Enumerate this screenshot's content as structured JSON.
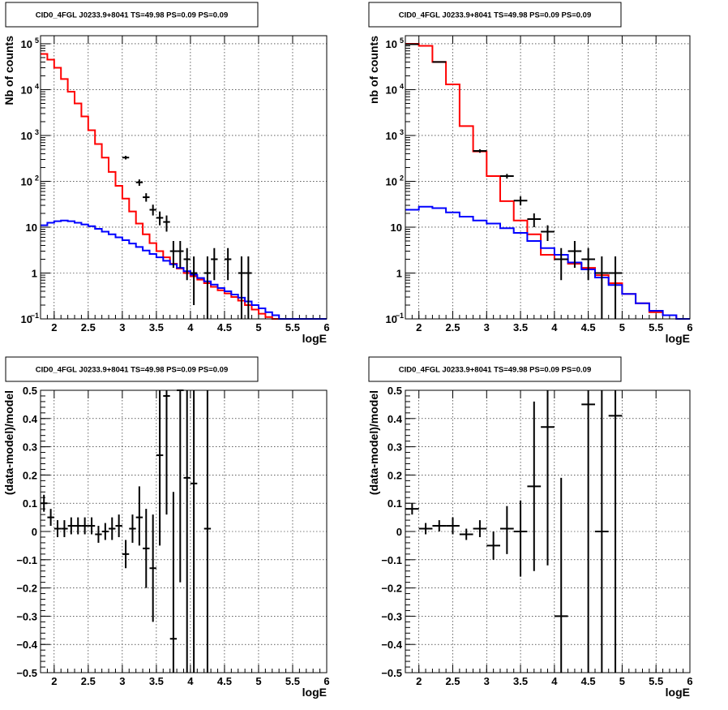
{
  "chart_data": [
    {
      "type": "line",
      "title": "CID0_4FGL J0233.9+8041 TS=49.98 PS=0.09 PS=0.09",
      "xlabel": "logE",
      "ylabel": "Nb of counts",
      "xlim": [
        1.8,
        6.0
      ],
      "ylim": [
        0.1,
        150000
      ],
      "yscale": "log",
      "grid": true,
      "x_ticks": [
        "2",
        "2.5",
        "3",
        "3.5",
        "4",
        "4.5",
        "5",
        "5.5",
        "6"
      ],
      "y_ticks": [
        {
          "v": 0.1,
          "base": "10",
          "exp": "−1"
        },
        {
          "v": 1,
          "base": "1",
          "exp": ""
        },
        {
          "v": 10,
          "base": "10",
          "exp": ""
        },
        {
          "v": 100,
          "base": "10",
          "exp": "2"
        },
        {
          "v": 1000,
          "base": "10",
          "exp": "3"
        },
        {
          "v": 10000,
          "base": "10",
          "exp": "4"
        },
        {
          "v": 100000,
          "base": "10",
          "exp": "5"
        }
      ],
      "series": [
        {
          "color": "#ff0000",
          "bin_edges": [
            1.8,
            1.9,
            2.0,
            2.1,
            2.2,
            2.3,
            2.4,
            2.5,
            2.6,
            2.7,
            2.8,
            2.9,
            3.0,
            3.1,
            3.2,
            3.3,
            3.4,
            3.5,
            3.6,
            3.7,
            3.8,
            3.9,
            4.0,
            4.1,
            4.2,
            4.3,
            4.4,
            4.5,
            4.6,
            4.7,
            4.8,
            4.9,
            5.0,
            5.1,
            5.2,
            5.3,
            5.4,
            5.5,
            5.6,
            5.7,
            5.8,
            5.9,
            6.0
          ],
          "values": [
            60000,
            45000,
            30000,
            17000,
            9000,
            5000,
            2600,
            1300,
            650,
            330,
            160,
            80,
            42,
            22,
            12,
            7,
            4.5,
            3,
            2.2,
            1.6,
            1.25,
            1.0,
            0.85,
            0.72,
            0.6,
            0.5,
            0.42,
            0.36,
            0.3,
            0.25,
            0.2,
            0.16,
            0.13,
            0.11,
            0.1,
            0.1,
            0.1,
            0.1,
            0.1,
            0.1,
            0.1,
            0.1
          ]
        },
        {
          "color": "#0000ff",
          "bin_edges": [
            1.8,
            1.9,
            2.0,
            2.1,
            2.2,
            2.3,
            2.4,
            2.5,
            2.6,
            2.7,
            2.8,
            2.9,
            3.0,
            3.1,
            3.2,
            3.3,
            3.4,
            3.5,
            3.6,
            3.7,
            3.8,
            3.9,
            4.0,
            4.1,
            4.2,
            4.3,
            4.4,
            4.5,
            4.6,
            4.7,
            4.8,
            4.9,
            5.0,
            5.1,
            5.2,
            5.3,
            5.4,
            5.5,
            5.6,
            5.7,
            5.8,
            5.9,
            6.0
          ],
          "values": [
            11,
            12.5,
            13.5,
            14,
            13.5,
            12.5,
            11.5,
            10.5,
            9.2,
            8,
            7,
            6,
            5.2,
            4.4,
            3.7,
            3.1,
            2.6,
            2.2,
            1.85,
            1.55,
            1.3,
            1.1,
            0.92,
            0.78,
            0.66,
            0.56,
            0.47,
            0.4,
            0.34,
            0.29,
            0.24,
            0.2,
            0.17,
            0.14,
            0.12,
            0.1,
            0.1,
            0.1,
            0.1,
            0.1,
            0.1,
            0.1
          ]
        }
      ],
      "points": [
        {
          "x": 3.05,
          "y": 330,
          "lo": 300,
          "hi": 360,
          "xerr": 0.05
        },
        {
          "x": 3.25,
          "y": 95,
          "lo": 80,
          "hi": 110,
          "xerr": 0.05
        },
        {
          "x": 3.35,
          "y": 45,
          "lo": 36,
          "hi": 55,
          "xerr": 0.05
        },
        {
          "x": 3.45,
          "y": 24,
          "lo": 18,
          "hi": 31,
          "xerr": 0.05
        },
        {
          "x": 3.55,
          "y": 16,
          "lo": 11,
          "hi": 22,
          "xerr": 0.05
        },
        {
          "x": 3.65,
          "y": 13,
          "lo": 8,
          "hi": 18,
          "xerr": 0.05
        },
        {
          "x": 3.75,
          "y": 3,
          "lo": 1.3,
          "hi": 5,
          "xerr": 0.05
        },
        {
          "x": 3.85,
          "y": 3,
          "lo": 1.3,
          "hi": 5,
          "xerr": 0.05
        },
        {
          "x": 3.95,
          "y": 2,
          "lo": 0.7,
          "hi": 3.5,
          "xerr": 0.05
        },
        {
          "x": 4.05,
          "y": 1,
          "lo": 0.2,
          "hi": 2.3,
          "xerr": 0.05
        },
        {
          "x": 4.25,
          "y": 1,
          "lo": 0.1,
          "hi": 2.3,
          "xerr": 0.05
        },
        {
          "x": 4.35,
          "y": 2,
          "lo": 0.7,
          "hi": 3.5,
          "xerr": 0.05
        },
        {
          "x": 4.55,
          "y": 2,
          "lo": 0.7,
          "hi": 3.5,
          "xerr": 0.05
        },
        {
          "x": 4.75,
          "y": 1,
          "lo": 0.1,
          "hi": 2.3,
          "xerr": 0.05
        },
        {
          "x": 4.85,
          "y": 1,
          "lo": 0.1,
          "hi": 2.3,
          "xerr": 0.05
        }
      ]
    },
    {
      "type": "line",
      "title": "CID0_4FGL J0233.9+8041 TS=49.98 PS=0.09 PS=0.09",
      "xlabel": "logE",
      "ylabel": "nb of counts",
      "xlim": [
        1.8,
        6.0
      ],
      "ylim": [
        0.1,
        150000
      ],
      "yscale": "log",
      "grid": true,
      "x_ticks": [
        "2",
        "2.5",
        "3",
        "3.5",
        "4",
        "4.5",
        "5",
        "5.5",
        "6"
      ],
      "y_ticks": [
        {
          "v": 0.1,
          "base": "10",
          "exp": "−1"
        },
        {
          "v": 1,
          "base": "1",
          "exp": ""
        },
        {
          "v": 10,
          "base": "10",
          "exp": ""
        },
        {
          "v": 100,
          "base": "10",
          "exp": "2"
        },
        {
          "v": 1000,
          "base": "10",
          "exp": "3"
        },
        {
          "v": 10000,
          "base": "10",
          "exp": "4"
        },
        {
          "v": 100000,
          "base": "10",
          "exp": "5"
        }
      ],
      "series": [
        {
          "color": "#ff0000",
          "bin_edges": [
            1.8,
            2.0,
            2.2,
            2.4,
            2.6,
            2.8,
            3.0,
            3.2,
            3.4,
            3.6,
            3.8,
            4.0,
            4.2,
            4.4,
            4.6,
            4.8,
            5.0,
            5.2,
            5.4,
            5.6,
            5.8,
            6.0
          ],
          "values": [
            100000,
            90000,
            40000,
            13000,
            1600,
            450,
            130,
            37,
            14,
            7,
            2.5,
            2,
            1.6,
            1.3,
            0.9,
            0.6,
            0.35,
            0.22,
            0.14,
            0.12,
            0.1
          ]
        },
        {
          "color": "#0000ff",
          "bin_edges": [
            1.8,
            2.0,
            2.2,
            2.4,
            2.6,
            2.8,
            3.0,
            3.2,
            3.4,
            3.6,
            3.8,
            4.0,
            4.2,
            4.4,
            4.6,
            4.8,
            5.0,
            5.2,
            5.4,
            5.6,
            5.8,
            6.0
          ],
          "values": [
            24,
            28,
            26,
            21,
            17,
            14,
            12,
            9.5,
            7.5,
            5,
            3.5,
            2.5,
            1.7,
            1.2,
            0.8,
            0.55,
            0.35,
            0.22,
            0.15,
            0.12,
            0.1
          ]
        }
      ],
      "points": [
        {
          "x": 1.9,
          "y": 98000,
          "lo": 95000,
          "hi": 102000,
          "xerr": 0.1
        },
        {
          "x": 2.3,
          "y": 40000,
          "lo": 39000,
          "hi": 41000,
          "xerr": 0.1
        },
        {
          "x": 2.9,
          "y": 460,
          "lo": 420,
          "hi": 500,
          "xerr": 0.1
        },
        {
          "x": 3.3,
          "y": 130,
          "lo": 115,
          "hi": 145,
          "xerr": 0.1
        },
        {
          "x": 3.5,
          "y": 38,
          "lo": 30,
          "hi": 47,
          "xerr": 0.1
        },
        {
          "x": 3.7,
          "y": 15,
          "lo": 10,
          "hi": 20,
          "xerr": 0.1
        },
        {
          "x": 3.9,
          "y": 8,
          "lo": 5,
          "hi": 11,
          "xerr": 0.1
        },
        {
          "x": 4.1,
          "y": 2,
          "lo": 0.7,
          "hi": 3.5,
          "xerr": 0.1
        },
        {
          "x": 4.3,
          "y": 3,
          "lo": 1.3,
          "hi": 5,
          "xerr": 0.1
        },
        {
          "x": 4.5,
          "y": 2,
          "lo": 0.7,
          "hi": 3.5,
          "xerr": 0.1
        },
        {
          "x": 4.7,
          "y": 1,
          "lo": 0.1,
          "hi": 2.3,
          "xerr": 0.1
        },
        {
          "x": 4.9,
          "y": 1,
          "lo": 0.1,
          "hi": 2.3,
          "xerr": 0.1
        }
      ]
    },
    {
      "type": "scatter",
      "title": "CID0_4FGL J0233.9+8041 TS=49.98 PS=0.09 PS=0.09",
      "xlabel": "logE",
      "ylabel": "(data-model)/model",
      "xlim": [
        1.8,
        6.0
      ],
      "ylim": [
        -0.5,
        0.5
      ],
      "yscale": "linear",
      "grid": true,
      "x_ticks": [
        "2",
        "2.5",
        "3",
        "3.5",
        "4",
        "4.5",
        "5",
        "5.5",
        "6"
      ],
      "y_ticks": [
        "−0.5",
        "−0.4",
        "−0.3",
        "−0.2",
        "−0.1",
        "0",
        "0.1",
        "0.2",
        "0.3",
        "0.4",
        "0.5"
      ],
      "points": [
        {
          "x": 1.85,
          "y": 0.1,
          "lo": 0.07,
          "hi": 0.13,
          "xerr": 0.05
        },
        {
          "x": 1.95,
          "y": 0.05,
          "lo": 0.02,
          "hi": 0.08,
          "xerr": 0.05
        },
        {
          "x": 2.05,
          "y": 0.01,
          "lo": -0.02,
          "hi": 0.04,
          "xerr": 0.05
        },
        {
          "x": 2.15,
          "y": 0.01,
          "lo": -0.02,
          "hi": 0.04,
          "xerr": 0.05
        },
        {
          "x": 2.25,
          "y": 0.02,
          "lo": -0.01,
          "hi": 0.05,
          "xerr": 0.05
        },
        {
          "x": 2.35,
          "y": 0.02,
          "lo": -0.01,
          "hi": 0.05,
          "xerr": 0.05
        },
        {
          "x": 2.45,
          "y": 0.02,
          "lo": -0.01,
          "hi": 0.05,
          "xerr": 0.05
        },
        {
          "x": 2.55,
          "y": 0.02,
          "lo": -0.01,
          "hi": 0.05,
          "xerr": 0.05
        },
        {
          "x": 2.65,
          "y": -0.01,
          "lo": -0.04,
          "hi": 0.02,
          "xerr": 0.05
        },
        {
          "x": 2.75,
          "y": 0.0,
          "lo": -0.03,
          "hi": 0.03,
          "xerr": 0.05
        },
        {
          "x": 2.85,
          "y": 0.01,
          "lo": -0.03,
          "hi": 0.05,
          "xerr": 0.05
        },
        {
          "x": 2.95,
          "y": 0.02,
          "lo": -0.02,
          "hi": 0.06,
          "xerr": 0.05
        },
        {
          "x": 3.05,
          "y": -0.08,
          "lo": -0.13,
          "hi": -0.03,
          "xerr": 0.05
        },
        {
          "x": 3.15,
          "y": 0.01,
          "lo": -0.04,
          "hi": 0.06,
          "xerr": 0.05
        },
        {
          "x": 3.25,
          "y": 0.05,
          "lo": -0.05,
          "hi": 0.16,
          "xerr": 0.05
        },
        {
          "x": 3.35,
          "y": -0.06,
          "lo": -0.2,
          "hi": 0.08,
          "xerr": 0.05
        },
        {
          "x": 3.45,
          "y": -0.13,
          "lo": -0.32,
          "hi": 0.06,
          "xerr": 0.05
        },
        {
          "x": 3.55,
          "y": 0.27,
          "lo": -0.05,
          "hi": 0.6,
          "xerr": 0.05
        },
        {
          "x": 3.65,
          "y": 0.48,
          "lo": 0.06,
          "hi": 0.9,
          "xerr": 0.05
        },
        {
          "x": 3.75,
          "y": -0.38,
          "lo": -0.9,
          "hi": 0.14,
          "xerr": 0.05
        },
        {
          "x": 3.85,
          "y": 0.5,
          "lo": -0.18,
          "hi": 1.2,
          "xerr": 0.05
        },
        {
          "x": 3.95,
          "y": 0.19,
          "lo": -0.7,
          "hi": 1.1,
          "xerr": 0.05
        },
        {
          "x": 4.05,
          "y": 0.17,
          "lo": -0.8,
          "hi": 1.1,
          "xerr": 0.05
        },
        {
          "x": 4.25,
          "y": 0.01,
          "lo": -1.0,
          "hi": 1.0,
          "xerr": 0.05
        }
      ]
    },
    {
      "type": "scatter",
      "title": "CID0_4FGL J0233.9+8041 TS=49.98 PS=0.09 PS=0.09",
      "xlabel": "logE",
      "ylabel": "(data-model)/model",
      "xlim": [
        1.8,
        6.0
      ],
      "ylim": [
        -0.5,
        0.5
      ],
      "yscale": "linear",
      "grid": true,
      "x_ticks": [
        "2",
        "2.5",
        "3",
        "3.5",
        "4",
        "4.5",
        "5",
        "5.5",
        "6"
      ],
      "y_ticks": [
        "−0.5",
        "−0.4",
        "−0.3",
        "−0.2",
        "−0.1",
        "0",
        "0.1",
        "0.2",
        "0.3",
        "0.4",
        "0.5"
      ],
      "points": [
        {
          "x": 1.9,
          "y": 0.08,
          "lo": 0.06,
          "hi": 0.1,
          "xerr": 0.1
        },
        {
          "x": 2.1,
          "y": 0.01,
          "lo": -0.01,
          "hi": 0.03,
          "xerr": 0.1
        },
        {
          "x": 2.3,
          "y": 0.02,
          "lo": 0.0,
          "hi": 0.04,
          "xerr": 0.1
        },
        {
          "x": 2.5,
          "y": 0.02,
          "lo": -0.01,
          "hi": 0.05,
          "xerr": 0.1
        },
        {
          "x": 2.7,
          "y": -0.01,
          "lo": -0.03,
          "hi": 0.01,
          "xerr": 0.1
        },
        {
          "x": 2.9,
          "y": 0.01,
          "lo": -0.02,
          "hi": 0.04,
          "xerr": 0.1
        },
        {
          "x": 3.1,
          "y": -0.05,
          "lo": -0.1,
          "hi": 0.0,
          "xerr": 0.1
        },
        {
          "x": 3.3,
          "y": 0.01,
          "lo": -0.08,
          "hi": 0.09,
          "xerr": 0.1
        },
        {
          "x": 3.5,
          "y": 0.0,
          "lo": -0.16,
          "hi": 0.11,
          "xerr": 0.1
        },
        {
          "x": 3.7,
          "y": 0.16,
          "lo": -0.14,
          "hi": 0.46,
          "xerr": 0.1
        },
        {
          "x": 3.9,
          "y": 0.37,
          "lo": -0.12,
          "hi": 0.86,
          "xerr": 0.1
        },
        {
          "x": 4.1,
          "y": -0.3,
          "lo": -0.9,
          "hi": 0.19,
          "xerr": 0.1
        },
        {
          "x": 4.5,
          "y": 0.45,
          "lo": -0.5,
          "hi": 1.4,
          "xerr": 0.1
        },
        {
          "x": 4.7,
          "y": 0.0,
          "lo": -1.0,
          "hi": 1.0,
          "xerr": 0.1
        },
        {
          "x": 4.9,
          "y": 0.41,
          "lo": -0.55,
          "hi": 1.4,
          "xerr": 0.1
        }
      ]
    }
  ]
}
